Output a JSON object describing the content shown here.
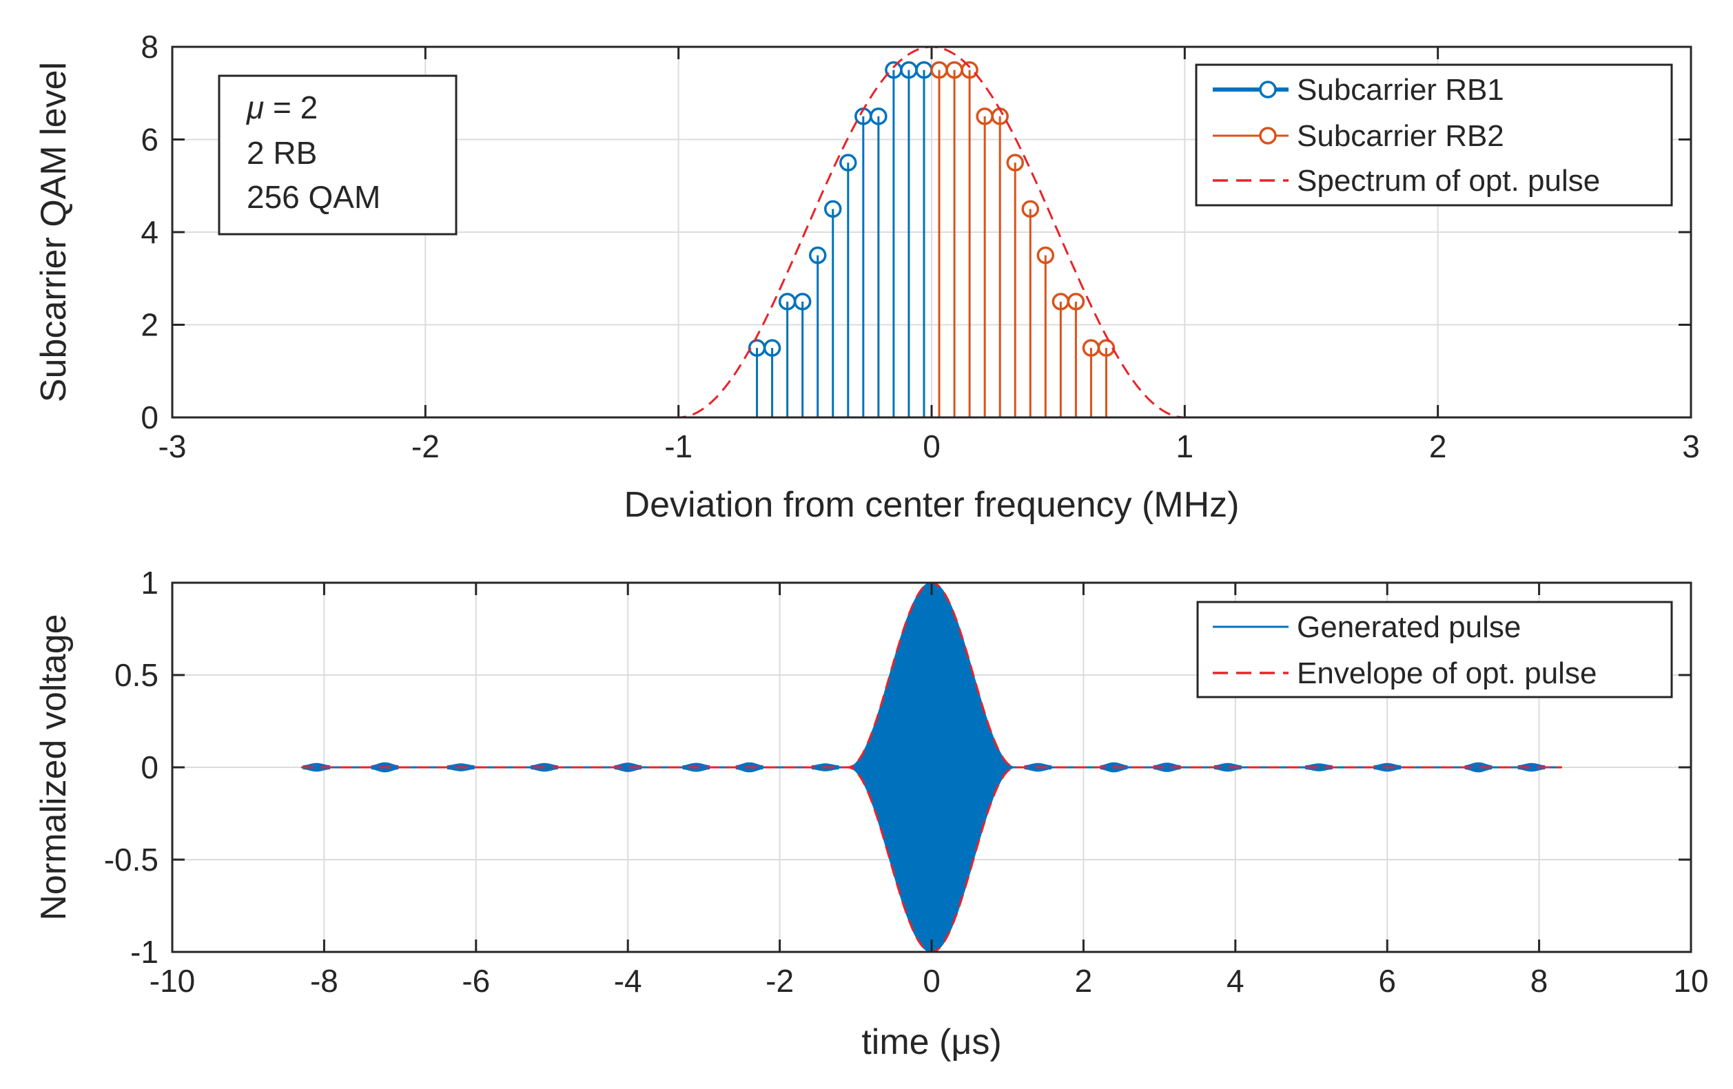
{
  "chart_data": [
    {
      "type": "stem",
      "xlabel": "Deviation from center frequency (MHz)",
      "ylabel": "Subcarrier QAM level",
      "xlim": [
        -3,
        3
      ],
      "ylim": [
        0,
        8
      ],
      "xticks": [
        -3,
        -2,
        -1,
        0,
        1,
        2,
        3
      ],
      "yticks": [
        0,
        2,
        4,
        6,
        8
      ],
      "grid": true,
      "legend_position": "top-right",
      "annotation": {
        "mu_symbol": "μ",
        "mu_rest": " = 2",
        "rb": "2 RB",
        "qam": "256 QAM"
      },
      "colors": {
        "rb1": "#0072BD",
        "rb2": "#D95319",
        "spectrum": "#E8232A",
        "axis": "#262626",
        "grid": "#dcdcdc"
      },
      "series": [
        {
          "name": "Subcarrier RB1",
          "style": "stem-circle",
          "x": [
            -0.69,
            -0.63,
            -0.57,
            -0.51,
            -0.45,
            -0.39,
            -0.33,
            -0.27,
            -0.21,
            -0.15,
            -0.09,
            -0.03
          ],
          "values": [
            1.5,
            1.5,
            2.5,
            2.5,
            3.5,
            4.5,
            5.5,
            6.5,
            6.5,
            7.5,
            7.5,
            7.5
          ]
        },
        {
          "name": "Subcarrier RB2",
          "style": "stem-circle",
          "x": [
            0.03,
            0.09,
            0.15,
            0.21,
            0.27,
            0.33,
            0.39,
            0.45,
            0.51,
            0.57,
            0.63,
            0.69
          ],
          "values": [
            7.5,
            7.5,
            7.5,
            6.5,
            6.5,
            5.5,
            4.5,
            3.5,
            2.5,
            2.5,
            1.5,
            1.5
          ]
        },
        {
          "name": "Spectrum of opt. pulse",
          "style": "dashed-line",
          "function": "raised-cosine",
          "peak": 8,
          "half_width": 1.0
        }
      ]
    },
    {
      "type": "line",
      "xlabel": "time (μs)",
      "ylabel": "Normalized voltage",
      "xlim": [
        -10,
        10
      ],
      "ylim": [
        -1,
        1
      ],
      "xticks": [
        -10,
        -8,
        -6,
        -4,
        -2,
        0,
        2,
        4,
        6,
        8,
        10
      ],
      "yticks": [
        -1,
        -0.5,
        0,
        0.5,
        1
      ],
      "ytick_labels": [
        "-1",
        "-0.5",
        "0",
        "0.5",
        "1"
      ],
      "grid": true,
      "legend_position": "top-right",
      "colors": {
        "pulse": "#0072BD",
        "envelope": "#E8232A"
      },
      "signal_range": [
        -8.3,
        8.3
      ],
      "main_lobe_half_width": 1.1,
      "sidelobe_centers": [
        -8.1,
        -7.2,
        -6.2,
        -5.1,
        -4.0,
        -3.1,
        -2.4,
        -1.4,
        1.4,
        2.4,
        3.1,
        3.9,
        5.1,
        6.0,
        7.2,
        7.9
      ],
      "sidelobe_amplitudes": [
        0.012,
        0.016,
        0.01,
        0.012,
        0.014,
        0.013,
        0.016,
        0.01,
        0.012,
        0.016,
        0.014,
        0.012,
        0.01,
        0.012,
        0.016,
        0.012
      ],
      "series": [
        {
          "name": "Generated pulse",
          "style": "solid-line",
          "peak": 1
        },
        {
          "name": "Envelope of opt. pulse",
          "style": "dashed-line",
          "peak": 1
        }
      ]
    }
  ]
}
